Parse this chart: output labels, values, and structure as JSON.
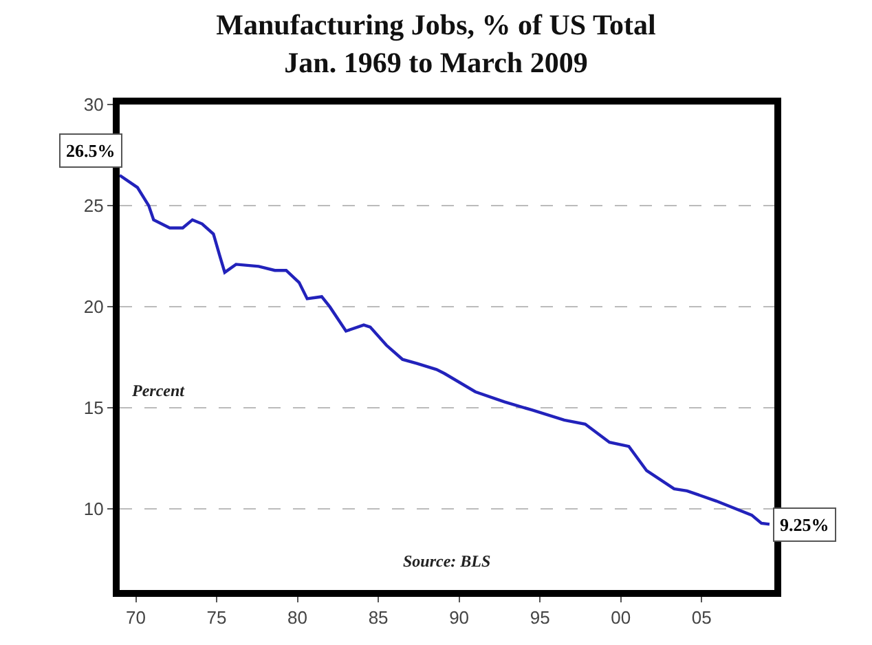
{
  "chart_data": {
    "type": "line",
    "title": "Manufacturing Jobs, % of US Total\nJan. 1969 to March 2009",
    "x": [
      1969.0,
      1970.1,
      1970.8,
      1971.1,
      1972.1,
      1972.9,
      1973.5,
      1974.1,
      1974.8,
      1975.2,
      1975.5,
      1976.2,
      1977.6,
      1978.6,
      1979.3,
      1980.1,
      1980.6,
      1981.5,
      1982.0,
      1983.0,
      1984.1,
      1984.5,
      1985.5,
      1986.5,
      1987.4,
      1988.6,
      1989.1,
      1991.0,
      1992.8,
      1994.5,
      1996.5,
      1997.8,
      1999.3,
      2000.5,
      2001.6,
      2003.3,
      2004.1,
      2005.9,
      2008.1,
      2008.7,
      2009.2
    ],
    "series": [
      {
        "color": "#2222bb",
        "values": [
          26.5,
          25.9,
          25.0,
          24.3,
          23.9,
          23.9,
          24.3,
          24.1,
          23.6,
          22.5,
          21.7,
          22.1,
          22.0,
          21.8,
          21.8,
          21.2,
          20.4,
          20.5,
          20.0,
          18.8,
          19.1,
          19.0,
          18.1,
          17.4,
          17.2,
          16.9,
          16.7,
          15.8,
          15.3,
          14.9,
          14.4,
          14.2,
          13.3,
          13.1,
          11.9,
          11.0,
          10.9,
          10.4,
          9.7,
          9.3,
          9.25
        ]
      }
    ],
    "xlim": [
      1969,
      2009.5
    ],
    "xticks": [
      {
        "value": 1970,
        "label": "70"
      },
      {
        "value": 1975,
        "label": "75"
      },
      {
        "value": 1980,
        "label": "80"
      },
      {
        "value": 1985,
        "label": "85"
      },
      {
        "value": 1990,
        "label": "90"
      },
      {
        "value": 1995,
        "label": "95"
      },
      {
        "value": 2000,
        "label": "00"
      },
      {
        "value": 2005,
        "label": "05"
      }
    ],
    "ylim": [
      6,
      30
    ],
    "yticks": [
      10,
      15,
      20,
      25,
      30
    ],
    "grid": "y",
    "marker": "none",
    "line_style": "solid",
    "annotations": [
      {
        "text": "26.5%",
        "x": 1969.0,
        "y": 26.5
      },
      {
        "text": "9.25%",
        "x": 2009.2,
        "y": 9.25
      },
      "Percent",
      "Source: BLS"
    ]
  }
}
